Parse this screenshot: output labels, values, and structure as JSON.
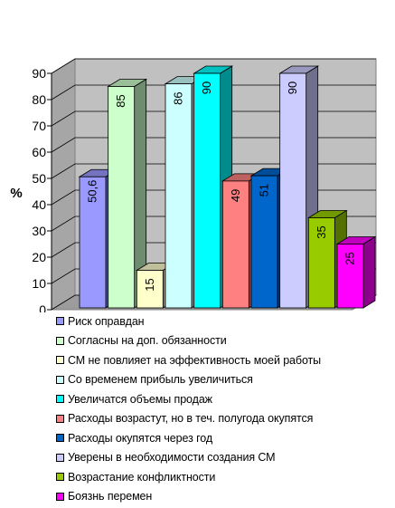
{
  "chart_data": {
    "type": "bar",
    "style": "3d-clustered-bar",
    "ylabel": "%",
    "ylim": [
      0,
      90
    ],
    "yticks": [
      0,
      10,
      20,
      30,
      40,
      50,
      60,
      70,
      80,
      90
    ],
    "grid": true,
    "legend_position": "bottom",
    "series": [
      {
        "name": "Риск оправдан",
        "value": 50.6,
        "label": "50,6",
        "color": "#9999ff"
      },
      {
        "name": "Согласны на доп. обязанности",
        "value": 85,
        "label": "85",
        "color": "#ccffcc"
      },
      {
        "name": "СМ не повлияет на эффективность моей работы",
        "value": 15,
        "label": "15",
        "color": "#ffffcc"
      },
      {
        "name": "Со временем прибыль увеличиться",
        "value": 86,
        "label": "86",
        "color": "#ccffff"
      },
      {
        "name": "Увеличатся объемы продаж",
        "value": 90,
        "label": "90",
        "color": "#00ffff"
      },
      {
        "name": "Расходы возрастут, но в теч. полугода окупятся",
        "value": 49,
        "label": "49",
        "color": "#ff8080"
      },
      {
        "name": "Расходы окупятся через год",
        "value": 51,
        "label": "51",
        "color": "#0066cc"
      },
      {
        "name": "Уверены в необходимости создания СМ",
        "value": 90,
        "label": "90",
        "color": "#ccccff"
      },
      {
        "name": "Возрастание конфликтности",
        "value": 35,
        "label": "35",
        "color": "#99cc00"
      },
      {
        "name": "Боязнь перемен",
        "value": 25,
        "label": "25",
        "color": "#ff00ff"
      }
    ]
  }
}
